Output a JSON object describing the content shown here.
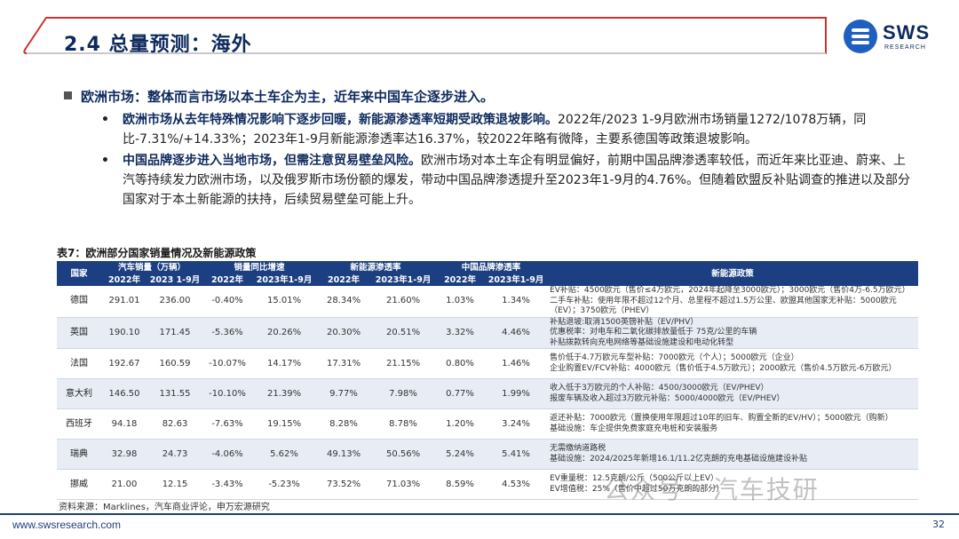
{
  "header": {
    "title": "2.4 总量预测：海外",
    "logo_text": "SWS",
    "logo_sub": "RESEARCH"
  },
  "bullets": {
    "main": "欧洲市场：整体而言市场以本土车企为主，近年来中国车企逐步进入。",
    "sub1_bold": "欧洲市场从去年特殊情况影响下逐步回暖，新能源渗透率短期受政策退坡影响。",
    "sub1_text": "2022年/2023 1-9月欧洲市场销量1272/1078万辆，同比-7.31%/+14.33%；2023年1-9月新能源渗透率达16.37%，较2022年略有微降，主要系德国等政策退坡影响。",
    "sub2_bold": "中国品牌逐步进入当地市场，但需注意贸易壁垒风险。",
    "sub2_text": "欧洲市场对本土车企有明显偏好，前期中国品牌渗透率较低，而近年来比亚迪、蔚来、上汽等持续发力欧洲市场，以及俄罗斯市场份额的爆发，带动中国品牌渗透提升至2023年1-9月的4.76%。但随着欧盟反补贴调查的推进以及部分国家对于本土新能源的扶持，后续贸易壁垒可能上升。"
  },
  "table": {
    "caption": "表7：欧洲部分国家销量情况及新能源政策",
    "header_top": [
      "国家",
      "汽车销量（万辆）",
      "销量同比增速",
      "新能源渗透率",
      "中国品牌渗透率",
      "新能源政策"
    ],
    "header_sub": [
      "2022年",
      "2023 1-9月",
      "2022年",
      "2023年1-9月",
      "2022年",
      "2023年1-9月",
      "2022年",
      "2023年1-9月"
    ],
    "rows": [
      {
        "country": "德国",
        "v": [
          "291.01",
          "236.00",
          "-0.40%",
          "15.01%",
          "28.34%",
          "21.60%",
          "1.03%",
          "1.34%"
        ],
        "policy": "EV补贴：4500欧元（售价≤4万欧元，2024年起降至3000欧元）；3000欧元（售价4万-6.5万欧元）\n二手车补贴：使用年限不超过12个月、总里程不超过1.5万公里、欧盟其他国家无补贴：5000欧元（EV）；3750欧元（PHEV）"
      },
      {
        "country": "英国",
        "v": [
          "190.10",
          "171.45",
          "-5.36%",
          "20.26%",
          "20.30%",
          "20.51%",
          "3.32%",
          "4.46%"
        ],
        "policy": "补贴退坡:取消1500英镑补贴（EV/PHV）\n优惠税率：对电车和二氧化碳排放量低于 75克/公里的车辆\n补贴拨款转向充电网络等基础设施建设和电动化转型"
      },
      {
        "country": "法国",
        "v": [
          "192.67",
          "160.59",
          "-10.07%",
          "14.17%",
          "17.31%",
          "21.15%",
          "0.80%",
          "1.46%"
        ],
        "policy": "售价低于4.7万欧元车型补贴：7000欧元（个人）；5000欧元（企业）\n企业购置EV/FCV补贴：4000欧元（售价低于4.5万欧元）；2000欧元（售价4.5万欧元-6万欧元）"
      },
      {
        "country": "意大利",
        "v": [
          "146.50",
          "131.55",
          "-10.10%",
          "21.39%",
          "9.77%",
          "7.98%",
          "0.77%",
          "1.99%"
        ],
        "policy": "收入低于3万欧元的个人补贴：4500/3000欧元（EV/PHEV）\n报废车辆及收入超过3万欧元补贴：5000/4000欧元（EV/PHEV）"
      },
      {
        "country": "西班牙",
        "v": [
          "94.18",
          "82.63",
          "-7.63%",
          "19.15%",
          "8.28%",
          "8.78%",
          "1.20%",
          "3.24%"
        ],
        "policy": "返还补贴：7000欧元（置换使用年限超过10年的旧车、购置全新的EV/HV）；5000欧元（购新）\n基础设施：车企提供免费家庭充电桩和安装服务"
      },
      {
        "country": "瑞典",
        "v": [
          "32.98",
          "24.73",
          "-4.06%",
          "5.62%",
          "49.13%",
          "50.56%",
          "5.24%",
          "5.41%"
        ],
        "policy": "无需缴纳道路税\n基础设施：2024/2025年新增16.1/11.2亿克朗的充电基础设施建设补贴"
      },
      {
        "country": "挪威",
        "v": [
          "21.00",
          "12.15",
          "-3.43%",
          "-5.23%",
          "73.52%",
          "71.03%",
          "8.59%",
          "4.53%"
        ],
        "policy": "EV重量税：12.5克朗/公斤（500公斤以上EV）\nEV增值税：25%（售价中超过50万克朗的部分）"
      }
    ],
    "source": "资料来源：Marklines，汽车商业评论，申万宏源研究"
  },
  "footer": {
    "url": "www.swsresearch.com",
    "page": "32",
    "watermark": "公众号 · 汽车技研"
  }
}
